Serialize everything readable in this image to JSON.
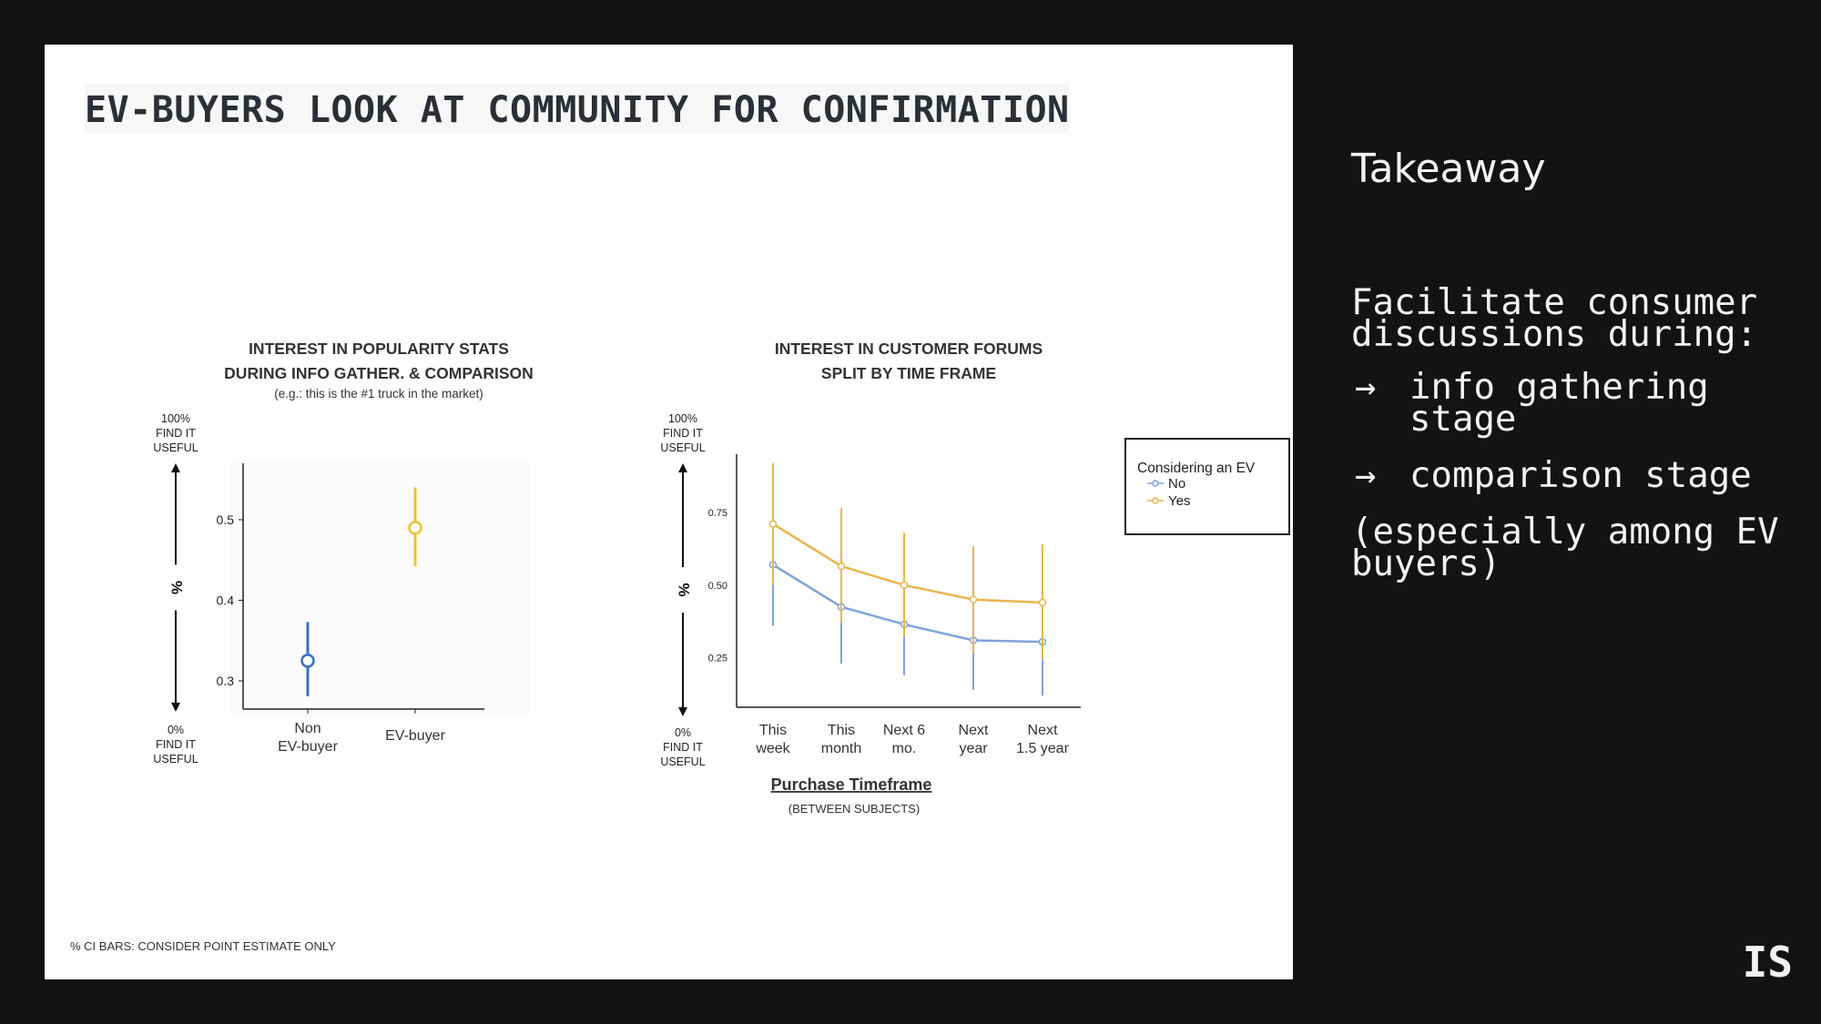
{
  "slide": {
    "title": "EV-BUYERS LOOK AT COMMUNITY FOR CONFIRMATION",
    "footnote": "% CI BARS: CONSIDER POINT ESTIMATE ONLY"
  },
  "scale_labels": {
    "top": [
      "100%",
      "FIND IT",
      "USEFUL"
    ],
    "bottom": [
      "0%",
      "FIND IT",
      "USEFUL"
    ],
    "axis_symbol": "%"
  },
  "chart_data": [
    {
      "type": "scatter",
      "title": [
        "INTEREST IN POPULARITY STATS",
        "DURING INFO GATHER. & COMPARISON"
      ],
      "subtitle": "(e.g.: this is the #1 truck in the market)",
      "categories": [
        [
          "Non",
          "EV-buyer"
        ],
        [
          "EV-buyer"
        ]
      ],
      "y_ticks": [
        "0.3",
        "0.4",
        "0.5"
      ],
      "ylim": [
        0.265,
        0.57
      ],
      "points": [
        {
          "value": 0.325,
          "ci": [
            0.281,
            0.373
          ],
          "color": "#3a6fc4"
        },
        {
          "value": 0.49,
          "ci": [
            0.442,
            0.54
          ],
          "color": "#f0c230"
        }
      ]
    },
    {
      "type": "line",
      "title": [
        "INTEREST IN CUSTOMER FORUMS",
        "SPLIT BY TIME FRAME"
      ],
      "xlabel": "Purchase Timeframe",
      "xlabel_note": "(BETWEEN SUBJECTS)",
      "categories": [
        [
          "This",
          "week"
        ],
        [
          "This",
          "month"
        ],
        [
          "Next 6",
          "mo."
        ],
        [
          "Next",
          "year"
        ],
        [
          "Next",
          "1.5 year"
        ]
      ],
      "y_ticks": [
        "0.25",
        "0.50",
        "0.75"
      ],
      "ylim": [
        0.08,
        0.95
      ],
      "legend": {
        "title": "Considering an EV",
        "position": "right"
      },
      "series": [
        {
          "name": "No",
          "color": "#7fa3d9",
          "values": [
            0.57,
            0.425,
            0.365,
            0.31,
            0.305
          ],
          "ci_low": [
            0.36,
            0.23,
            0.19,
            0.14,
            0.12
          ],
          "ci_high": [
            0.795,
            0.625,
            0.54,
            0.485,
            0.49
          ]
        },
        {
          "name": "Yes",
          "color": "#e8b54d",
          "values": [
            0.71,
            0.565,
            0.5,
            0.45,
            0.44
          ],
          "ci_low": [
            0.5,
            0.37,
            0.32,
            0.265,
            0.245
          ],
          "ci_high": [
            0.92,
            0.765,
            0.68,
            0.635,
            0.64
          ]
        }
      ]
    }
  ],
  "sidebar": {
    "heading": "Takeaway",
    "intro": "Facilitate consumer discussions during:",
    "bullets": [
      {
        "arrow": "→",
        "text": "info gathering stage"
      },
      {
        "arrow": "→",
        "text": "comparison stage"
      }
    ],
    "note": "(especially among EV buyers)"
  },
  "logo": "IS"
}
